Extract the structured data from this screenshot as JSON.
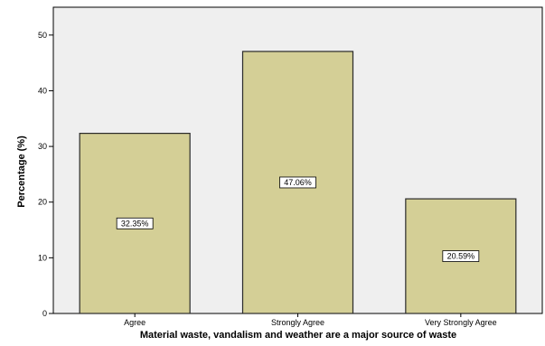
{
  "chart_data": {
    "type": "bar",
    "categories": [
      "Agree",
      "Strongly Agree",
      "Very Strongly Agree"
    ],
    "values": [
      32.35,
      47.06,
      20.59
    ],
    "data_labels": [
      "32.35%",
      "47.06%",
      "20.59%"
    ],
    "title": "",
    "xlabel": "Material waste, vandalism and weather are a major source of waste",
    "ylabel": "Percentage (%)",
    "ylim": [
      0,
      55
    ],
    "yticks": [
      0,
      10,
      20,
      30,
      40,
      50
    ],
    "grid": false,
    "colors": {
      "bar_fill": "#d4cf96",
      "bar_stroke": "#2a2a2a",
      "plot_background": "#efefef",
      "plot_border": "#000000"
    }
  }
}
